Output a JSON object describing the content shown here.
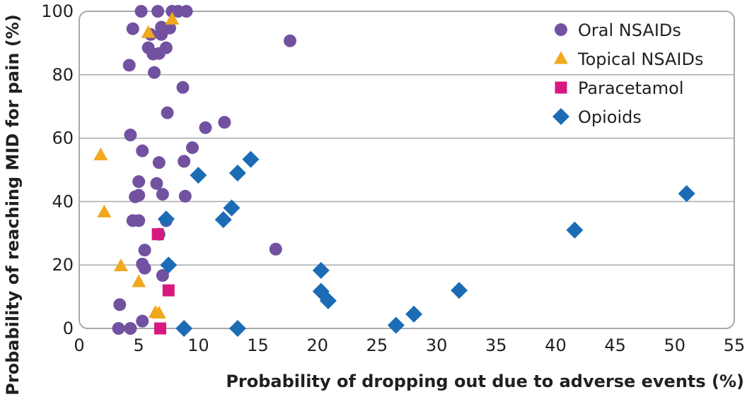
{
  "chart_data": {
    "type": "scatter",
    "title": "",
    "xlabel": "Probability of dropping out due to adverse events (%)",
    "ylabel": "Probability of reaching MID for pain (%)",
    "xlim": [
      0,
      55
    ],
    "ylim": [
      0,
      100
    ],
    "x_ticks": [
      "0",
      "5",
      "10",
      "15",
      "20",
      "25",
      "30",
      "35",
      "40",
      "45",
      "50",
      "55"
    ],
    "y_ticks": [
      "0",
      "20",
      "40",
      "60",
      "80",
      "100"
    ],
    "grid": "horizontal",
    "legend_position": "top-right",
    "series": [
      {
        "name": "Oral NSAIDs",
        "marker": "circle",
        "color": "#7252a0",
        "points": [
          [
            5.2,
            100
          ],
          [
            6.6,
            100
          ],
          [
            7.8,
            100
          ],
          [
            8.3,
            100
          ],
          [
            9.0,
            100
          ],
          [
            4.5,
            94.5
          ],
          [
            6.9,
            95
          ],
          [
            7.6,
            94.7
          ],
          [
            6.0,
            92.7
          ],
          [
            6.9,
            92.7
          ],
          [
            5.8,
            88.5
          ],
          [
            7.3,
            88.5
          ],
          [
            6.2,
            86.5
          ],
          [
            6.7,
            86.7
          ],
          [
            4.2,
            83
          ],
          [
            6.3,
            80.7
          ],
          [
            17.7,
            90.7
          ],
          [
            8.7,
            76
          ],
          [
            7.4,
            68
          ],
          [
            10.6,
            63.3
          ],
          [
            12.2,
            65
          ],
          [
            4.3,
            61
          ],
          [
            5.3,
            56
          ],
          [
            9.5,
            57
          ],
          [
            6.7,
            52.3
          ],
          [
            8.8,
            52.7
          ],
          [
            5.0,
            46.3
          ],
          [
            6.5,
            45.7
          ],
          [
            5.0,
            42
          ],
          [
            4.7,
            41.5
          ],
          [
            7.0,
            42.3
          ],
          [
            8.9,
            41.7
          ],
          [
            4.5,
            34
          ],
          [
            5.0,
            34
          ],
          [
            7.3,
            34
          ],
          [
            6.7,
            29.7
          ],
          [
            5.5,
            24.7
          ],
          [
            16.5,
            25
          ],
          [
            5.3,
            20.3
          ],
          [
            5.5,
            19
          ],
          [
            7.0,
            16.7
          ],
          [
            3.4,
            7.5
          ],
          [
            5.3,
            2.3
          ],
          [
            3.3,
            0
          ],
          [
            4.3,
            0
          ]
        ]
      },
      {
        "name": "Topical NSAIDs",
        "marker": "triangle",
        "color": "#f2a81d",
        "points": [
          [
            5.8,
            93.3
          ],
          [
            7.8,
            97.5
          ],
          [
            1.8,
            54.7
          ],
          [
            2.1,
            36.7
          ],
          [
            3.5,
            19.7
          ],
          [
            5.0,
            14.7
          ],
          [
            6.4,
            5
          ],
          [
            6.7,
            4.8
          ]
        ]
      },
      {
        "name": "Paracetamol",
        "marker": "square",
        "color": "#d7197f",
        "points": [
          [
            6.6,
            29.7
          ],
          [
            7.5,
            12
          ],
          [
            6.8,
            0
          ]
        ]
      },
      {
        "name": "Opioids",
        "marker": "diamond",
        "color": "#1c6cb5",
        "points": [
          [
            14.4,
            53.3
          ],
          [
            13.3,
            49
          ],
          [
            10.0,
            48.3
          ],
          [
            12.8,
            38
          ],
          [
            12.1,
            34.3
          ],
          [
            7.3,
            34.5
          ],
          [
            7.5,
            20
          ],
          [
            20.3,
            18.3
          ],
          [
            20.3,
            11.7
          ],
          [
            20.9,
            8.7
          ],
          [
            31.9,
            12
          ],
          [
            28.1,
            4.5
          ],
          [
            26.6,
            1
          ],
          [
            8.8,
            0
          ],
          [
            13.3,
            0
          ],
          [
            41.6,
            31
          ],
          [
            51.0,
            42.5
          ]
        ]
      }
    ]
  }
}
